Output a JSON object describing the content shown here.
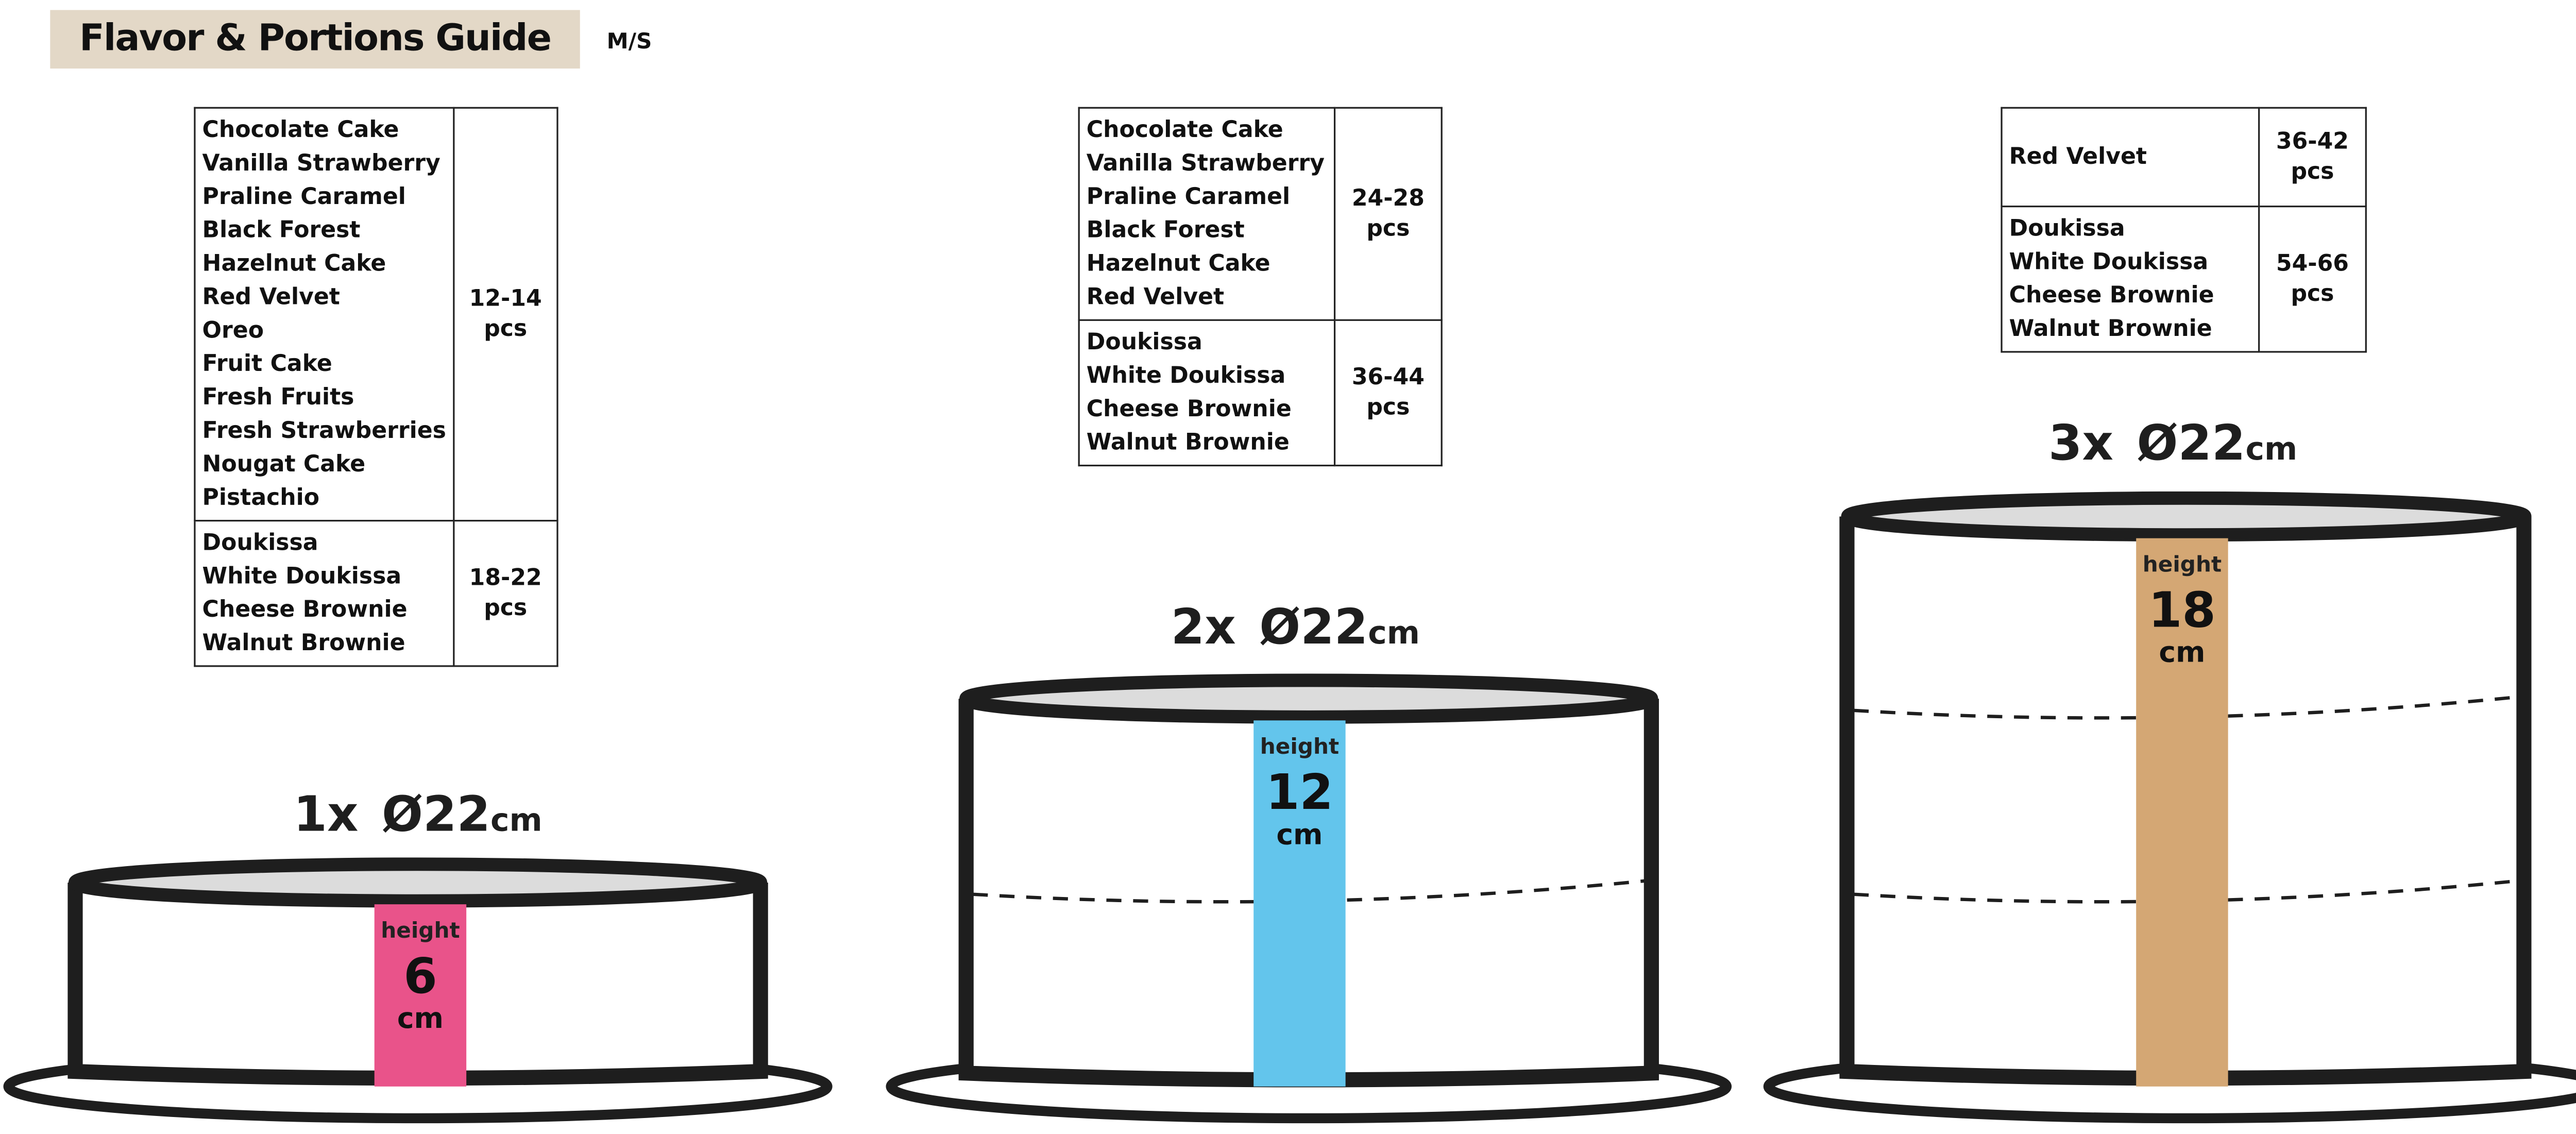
{
  "header": {
    "title": "Flavor & Portions Guide",
    "size_tag": "M/S"
  },
  "tables": [
    {
      "rows": [
        {
          "flavors": [
            "Chocolate Cake",
            "Vanilla Strawberry",
            "Praline Caramel",
            "Black Forest",
            "Hazelnut Cake",
            "Red Velvet",
            "Oreo",
            "Fruit Cake",
            "Fresh Fruits",
            "Fresh Strawberries",
            "Nougat Cake",
            "Pistachio"
          ],
          "portions": "12-14",
          "unit": "pcs"
        },
        {
          "flavors": [
            "Doukissa",
            "White Doukissa",
            "Cheese Brownie",
            "Walnut Brownie"
          ],
          "portions": "18-22",
          "unit": "pcs"
        }
      ]
    },
    {
      "rows": [
        {
          "flavors": [
            "Chocolate Cake",
            "Vanilla Strawberry",
            "Praline Caramel",
            "Black Forest",
            "Hazelnut Cake",
            "Red Velvet"
          ],
          "portions": "24-28",
          "unit": "pcs"
        },
        {
          "flavors": [
            "Doukissa",
            "White Doukissa",
            "Cheese Brownie",
            "Walnut Brownie"
          ],
          "portions": "36-44",
          "unit": "pcs"
        }
      ]
    },
    {
      "rows": [
        {
          "flavors": [
            "Red Velvet"
          ],
          "portions": "36-42",
          "unit": "pcs"
        },
        {
          "flavors": [
            "Doukissa",
            "White Doukissa",
            "Cheese Brownie",
            "Walnut Brownie"
          ],
          "portions": "54-66",
          "unit": "pcs"
        }
      ]
    }
  ],
  "cakes": [
    {
      "count": "1x",
      "diameter": "Ø22",
      "diameter_unit": "cm",
      "height_label": "height",
      "height": "6",
      "height_unit": "cm",
      "band_color": "#e9538a"
    },
    {
      "count": "2x",
      "diameter": "Ø22",
      "diameter_unit": "cm",
      "height_label": "height",
      "height": "12",
      "height_unit": "cm",
      "band_color": "#63c5ec"
    },
    {
      "count": "3x",
      "diameter": "Ø22",
      "diameter_unit": "cm",
      "height_label": "height",
      "height": "18",
      "height_unit": "cm",
      "band_color": "#d4a774"
    }
  ],
  "colors": {
    "title_bg": "#e3d8c7",
    "outline": "#1e1e1e",
    "cake_top": "#dcdcdc"
  }
}
